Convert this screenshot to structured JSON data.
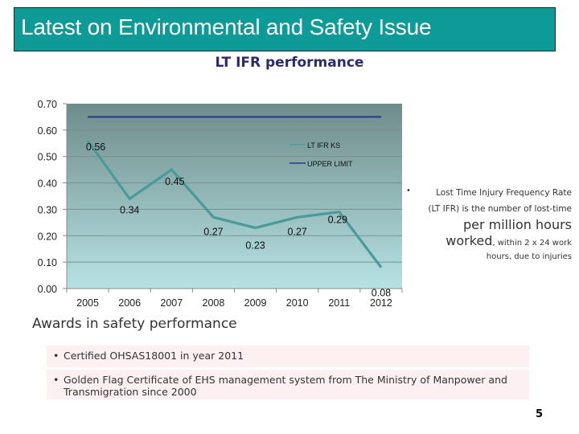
{
  "header": {
    "title": "Latest on Environmental and Safety Issue",
    "background": "#0e9a96"
  },
  "chart_data": {
    "type": "line",
    "title": "LT IFR performance",
    "xlabel": "",
    "ylabel": "",
    "categories": [
      "2005",
      "2006",
      "2007",
      "2008",
      "2009",
      "2010",
      "2011",
      "2012"
    ],
    "series": [
      {
        "name": "LT IFR KS",
        "values": [
          0.56,
          0.34,
          0.45,
          0.27,
          0.23,
          0.27,
          0.29,
          0.08
        ],
        "color": "#4a9a9c",
        "data_labels": [
          "0.56",
          "0.34",
          "0.45",
          "0.27",
          "0.23",
          "0.27",
          "0.29",
          "0.08"
        ]
      },
      {
        "name": "UPPER LIMIT",
        "values": [
          0.65,
          0.65,
          0.65,
          0.65,
          0.65,
          0.65,
          0.65,
          0.65
        ],
        "color": "#2b3a8e"
      }
    ],
    "ylim": [
      0,
      0.7
    ],
    "yticks": [
      "0.00",
      "0.10",
      "0.20",
      "0.30",
      "0.40",
      "0.50",
      "0.60",
      "0.70"
    ],
    "grid": true,
    "legend": "top-right",
    "background_gradient": [
      "#6f8c8a",
      "#b6e2e4"
    ]
  },
  "side_note": {
    "bullet": "•",
    "line1": "Lost Time Injury Frequency Rate",
    "line2": "(LT IFR) is the number of lost-time",
    "line3": "per million hours",
    "line4_big": "worked",
    "line4_small": ", within 2 x 24 work",
    "line5": "hours, due to injuries"
  },
  "awards": {
    "heading": "Awards in safety performance",
    "items": [
      "Certified OHSAS18001 in year 2011",
      "Golden Flag Certificate of EHS management system from The Ministry of Manpower and Transmigration since 2000"
    ]
  },
  "page_number": "5"
}
